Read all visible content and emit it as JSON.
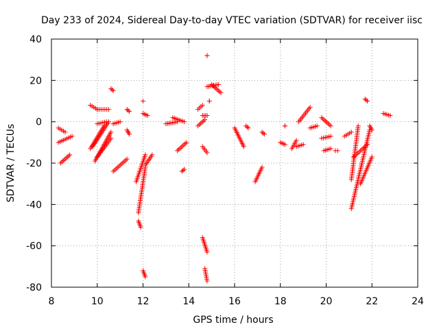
{
  "chart_data": {
    "type": "scatter",
    "title": "Day 233 of 2024, Sidereal Day-to-day VTEC variation (SDTVAR) for receiver iisc",
    "xlabel": "GPS time / hours",
    "ylabel": "SDTVAR / TECUs",
    "xlim": [
      8,
      24
    ],
    "ylim": [
      -80,
      40
    ],
    "xticks": [
      8,
      10,
      12,
      14,
      16,
      18,
      20,
      22,
      24
    ],
    "yticks": [
      -80,
      -60,
      -40,
      -20,
      0,
      20,
      40
    ],
    "grid": true,
    "marker": "+",
    "color": "#ff0000",
    "arcs": [
      {
        "x": [
          8.3,
          8.6
        ],
        "y": [
          -3,
          -5
        ]
      },
      {
        "x": [
          8.3,
          8.9
        ],
        "y": [
          -10,
          -7
        ]
      },
      {
        "x": [
          8.4,
          8.8
        ],
        "y": [
          -20,
          -16
        ]
      },
      {
        "x": [
          9.7,
          10.0
        ],
        "y": [
          8,
          6
        ]
      },
      {
        "x": [
          10.0,
          10.5
        ],
        "y": [
          6,
          6
        ]
      },
      {
        "x": [
          9.7,
          10.3
        ],
        "y": [
          -13,
          -2
        ]
      },
      {
        "x": [
          9.8,
          10.5
        ],
        "y": [
          -12,
          0
        ]
      },
      {
        "x": [
          9.9,
          10.6
        ],
        "y": [
          -19,
          -5
        ]
      },
      {
        "x": [
          10.0,
          10.6
        ],
        "y": [
          -17,
          -8
        ]
      },
      {
        "x": [
          10.0,
          10.4
        ],
        "y": [
          -1,
          0
        ]
      },
      {
        "x": [
          10.6,
          10.7
        ],
        "y": [
          16,
          15
        ]
      },
      {
        "x": [
          10.7,
          11.3
        ],
        "y": [
          -24,
          -18
        ]
      },
      {
        "x": [
          10.7,
          11.0
        ],
        "y": [
          -1,
          0
        ]
      },
      {
        "x": [
          11.3,
          11.4
        ],
        "y": [
          6,
          5
        ]
      },
      {
        "x": [
          11.3,
          11.4
        ],
        "y": [
          -4,
          -6
        ]
      },
      {
        "x": [
          11.7,
          12.1
        ],
        "y": [
          -29,
          -16
        ]
      },
      {
        "x": [
          11.8,
          12.1
        ],
        "y": [
          -44,
          -22
        ]
      },
      {
        "x": [
          11.8,
          11.9
        ],
        "y": [
          -48,
          -51
        ]
      },
      {
        "x": [
          12.0,
          12.1
        ],
        "y": [
          -72,
          -75
        ]
      },
      {
        "x": [
          12.0,
          12.2
        ],
        "y": [
          4,
          3
        ]
      },
      {
        "x": [
          12.0,
          12.0
        ],
        "y": [
          10,
          10
        ]
      },
      {
        "x": [
          12.1,
          12.4
        ],
        "y": [
          -21,
          -16
        ]
      },
      {
        "x": [
          13.0,
          13.5
        ],
        "y": [
          -1,
          0
        ]
      },
      {
        "x": [
          13.3,
          13.8
        ],
        "y": [
          2,
          0
        ]
      },
      {
        "x": [
          13.5,
          13.9
        ],
        "y": [
          -14,
          -10
        ]
      },
      {
        "x": [
          13.7,
          13.8
        ],
        "y": [
          -24,
          -23
        ]
      },
      {
        "x": [
          14.4,
          14.7
        ],
        "y": [
          -2,
          1
        ]
      },
      {
        "x": [
          14.4,
          14.6
        ],
        "y": [
          6,
          8
        ]
      },
      {
        "x": [
          14.6,
          14.8
        ],
        "y": [
          3,
          3
        ]
      },
      {
        "x": [
          14.6,
          14.8
        ],
        "y": [
          -12,
          -15
        ]
      },
      {
        "x": [
          14.6,
          14.8
        ],
        "y": [
          -56,
          -63
        ]
      },
      {
        "x": [
          14.7,
          14.8
        ],
        "y": [
          -71,
          -77
        ]
      },
      {
        "x": [
          14.8,
          15.3
        ],
        "y": [
          17,
          18
        ]
      },
      {
        "x": [
          15.0,
          15.4
        ],
        "y": [
          18,
          14
        ]
      },
      {
        "x": [
          14.8,
          14.8
        ],
        "y": [
          32,
          32
        ]
      },
      {
        "x": [
          14.9,
          14.9
        ],
        "y": [
          10,
          10
        ]
      },
      {
        "x": [
          16.0,
          16.4
        ],
        "y": [
          -3,
          -12
        ]
      },
      {
        "x": [
          16.5,
          16.6
        ],
        "y": [
          -2,
          -3
        ]
      },
      {
        "x": [
          16.9,
          17.2
        ],
        "y": [
          -29,
          -22
        ]
      },
      {
        "x": [
          17.2,
          17.3
        ],
        "y": [
          -5,
          -6
        ]
      },
      {
        "x": [
          18.0,
          18.2
        ],
        "y": [
          -10,
          -11
        ]
      },
      {
        "x": [
          18.2,
          18.2
        ],
        "y": [
          -2,
          -2
        ]
      },
      {
        "x": [
          18.5,
          18.7
        ],
        "y": [
          -13,
          -9
        ]
      },
      {
        "x": [
          18.7,
          19.0
        ],
        "y": [
          -12,
          -11
        ]
      },
      {
        "x": [
          18.8,
          19.3
        ],
        "y": [
          0,
          7
        ]
      },
      {
        "x": [
          19.3,
          19.6
        ],
        "y": [
          -3,
          -2
        ]
      },
      {
        "x": [
          19.8,
          20.2
        ],
        "y": [
          2,
          -2
        ]
      },
      {
        "x": [
          19.8,
          20.2
        ],
        "y": [
          -8,
          -7
        ]
      },
      {
        "x": [
          19.9,
          20.2
        ],
        "y": [
          -14,
          -13
        ]
      },
      {
        "x": [
          20.4,
          20.5
        ],
        "y": [
          -14,
          -14
        ]
      },
      {
        "x": [
          20.8,
          21.1
        ],
        "y": [
          -7,
          -5
        ]
      },
      {
        "x": [
          21.1,
          21.4
        ],
        "y": [
          -28,
          -2
        ]
      },
      {
        "x": [
          21.1,
          21.9
        ],
        "y": [
          -42,
          -4
        ]
      },
      {
        "x": [
          21.2,
          21.8
        ],
        "y": [
          -17,
          -11
        ]
      },
      {
        "x": [
          21.5,
          22.0
        ],
        "y": [
          -30,
          -17
        ]
      },
      {
        "x": [
          21.9,
          22.0
        ],
        "y": [
          -2,
          -4
        ]
      },
      {
        "x": [
          21.7,
          21.8
        ],
        "y": [
          11,
          10
        ]
      },
      {
        "x": [
          22.5,
          22.8
        ],
        "y": [
          4,
          3
        ]
      }
    ]
  }
}
